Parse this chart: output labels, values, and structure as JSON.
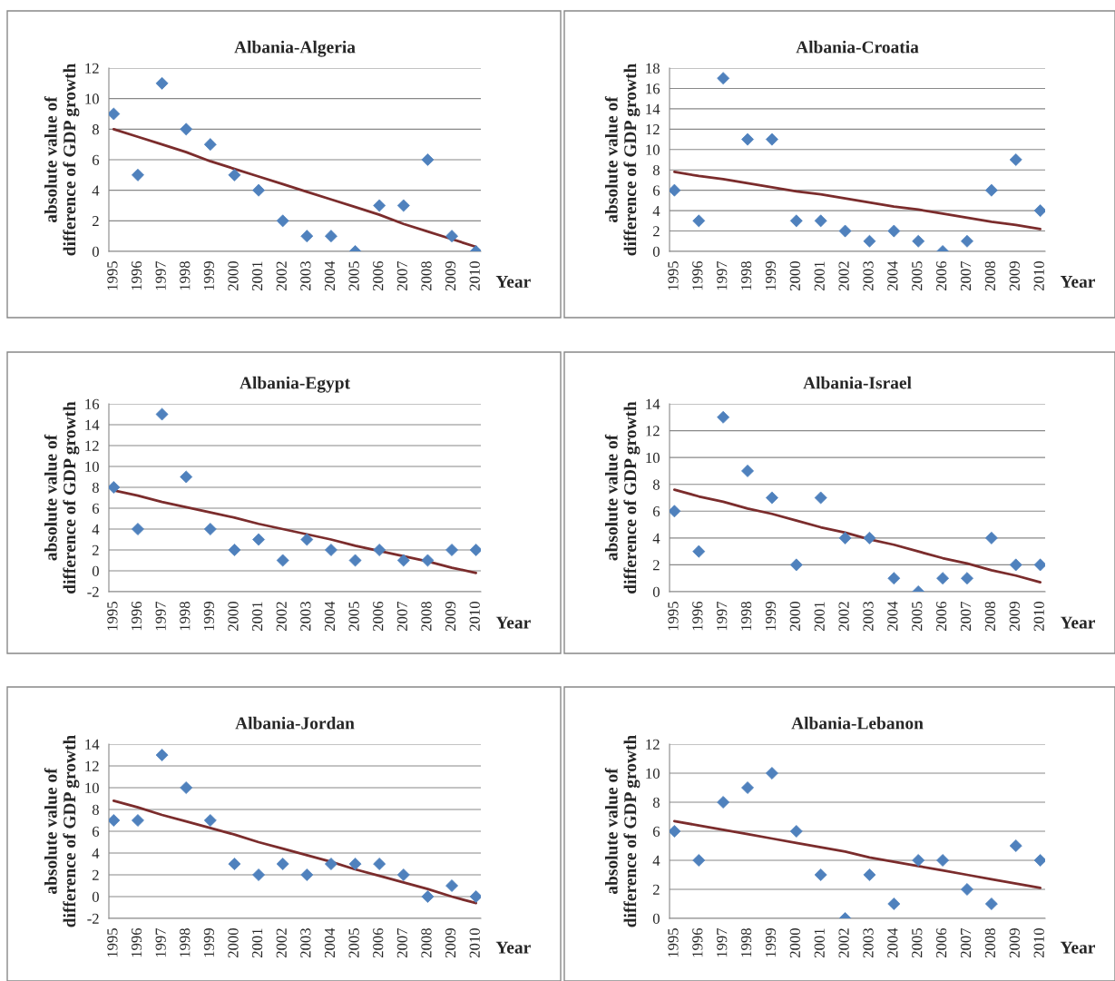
{
  "chart_data": [
    {
      "type": "scatter",
      "title": "Albania-Algeria",
      "xlabel": "Year",
      "ylabel": "absolute value of\ndifference of GDP growth",
      "categories": [
        "1995",
        "1996",
        "1997",
        "1998",
        "1999",
        "2000",
        "2001",
        "2002",
        "2003",
        "2004",
        "2005",
        "2006",
        "2007",
        "2008",
        "2009",
        "2010"
      ],
      "ylim": [
        0,
        12
      ],
      "yticks": [
        0,
        2,
        4,
        6,
        8,
        10,
        12
      ],
      "grid": "y",
      "legend": false,
      "series": [
        {
          "color": "#4f81bd",
          "marker": "diamond",
          "values": [
            9,
            5,
            11,
            8,
            7,
            5,
            4,
            2,
            1,
            1,
            0,
            3,
            3,
            6,
            1,
            0
          ]
        },
        {
          "type": "line",
          "color": "#7b2c2c",
          "marker": "none",
          "values": [
            8,
            7.5,
            7.0,
            6.5,
            5.9,
            5.4,
            4.9,
            4.4,
            3.9,
            3.4,
            2.9,
            2.4,
            1.8,
            1.3,
            0.8,
            0.3
          ]
        }
      ]
    },
    {
      "type": "scatter",
      "title": "Albania-Croatia",
      "xlabel": "Year",
      "ylabel": "absolute value of\ndifference of GDP growth",
      "categories": [
        "1995",
        "1996",
        "1997",
        "1998",
        "1999",
        "2000",
        "2001",
        "2002",
        "2003",
        "2004",
        "2005",
        "2006",
        "2007",
        "2008",
        "2009",
        "2010"
      ],
      "ylim": [
        0,
        18
      ],
      "yticks": [
        0,
        2,
        4,
        6,
        8,
        10,
        12,
        14,
        16,
        18
      ],
      "grid": "y",
      "legend": false,
      "series": [
        {
          "color": "#4f81bd",
          "marker": "diamond",
          "values": [
            6,
            3,
            17,
            11,
            11,
            3,
            3,
            2,
            1,
            2,
            1,
            0,
            1,
            6,
            9,
            4
          ]
        },
        {
          "type": "line",
          "color": "#7b2c2c",
          "marker": "none",
          "values": [
            7.8,
            7.4,
            7.1,
            6.7,
            6.3,
            5.9,
            5.6,
            5.2,
            4.8,
            4.4,
            4.1,
            3.7,
            3.3,
            2.9,
            2.6,
            2.2
          ]
        }
      ]
    },
    {
      "type": "scatter",
      "title": "Albania-Egypt",
      "xlabel": "Year",
      "ylabel": "absolute value of\ndifference of GDP growth",
      "categories": [
        "1995",
        "1996",
        "1997",
        "1998",
        "1999",
        "2000",
        "2001",
        "2002",
        "2003",
        "2004",
        "2005",
        "2006",
        "2007",
        "2008",
        "2009",
        "2010"
      ],
      "ylim": [
        -2,
        16
      ],
      "yticks": [
        -2,
        0,
        2,
        4,
        6,
        8,
        10,
        12,
        14,
        16
      ],
      "grid": "y",
      "legend": false,
      "series": [
        {
          "color": "#4f81bd",
          "marker": "diamond",
          "values": [
            8,
            4,
            15,
            9,
            4,
            2,
            3,
            1,
            3,
            2,
            1,
            2,
            1,
            1,
            2,
            2
          ]
        },
        {
          "type": "line",
          "color": "#7b2c2c",
          "marker": "none",
          "values": [
            7.7,
            7.2,
            6.6,
            6.1,
            5.6,
            5.1,
            4.5,
            4.0,
            3.5,
            3.0,
            2.4,
            1.9,
            1.4,
            0.9,
            0.3,
            -0.2
          ]
        }
      ]
    },
    {
      "type": "scatter",
      "title": "Albania-Israel",
      "xlabel": "Year",
      "ylabel": "absolute value of\ndifference of GDP growth",
      "categories": [
        "1995",
        "1996",
        "1997",
        "1998",
        "1999",
        "2000",
        "2001",
        "2002",
        "2003",
        "2004",
        "2005",
        "2006",
        "2007",
        "2008",
        "2009",
        "2010"
      ],
      "ylim": [
        0,
        14
      ],
      "yticks": [
        0,
        2,
        4,
        6,
        8,
        10,
        12,
        14
      ],
      "grid": "y",
      "legend": false,
      "series": [
        {
          "color": "#4f81bd",
          "marker": "diamond",
          "values": [
            6,
            3,
            13,
            9,
            7,
            2,
            7,
            4,
            4,
            1,
            0,
            1,
            1,
            4,
            2,
            2
          ]
        },
        {
          "type": "line",
          "color": "#7b2c2c",
          "marker": "none",
          "values": [
            7.6,
            7.1,
            6.7,
            6.2,
            5.8,
            5.3,
            4.8,
            4.4,
            3.9,
            3.5,
            3.0,
            2.5,
            2.1,
            1.6,
            1.2,
            0.7
          ]
        }
      ]
    },
    {
      "type": "scatter",
      "title": "Albania-Jordan",
      "xlabel": "Year",
      "ylabel": "absolute value of\ndifference of GDP growth",
      "categories": [
        "1995",
        "1996",
        "1997",
        "1998",
        "1999",
        "2000",
        "2001",
        "2002",
        "2003",
        "2004",
        "2005",
        "2006",
        "2007",
        "2008",
        "2009",
        "2010"
      ],
      "ylim": [
        -2,
        14
      ],
      "yticks": [
        -2,
        0,
        2,
        4,
        6,
        8,
        10,
        12,
        14
      ],
      "grid": "y",
      "legend": false,
      "series": [
        {
          "color": "#4f81bd",
          "marker": "diamond",
          "values": [
            7,
            7,
            13,
            10,
            7,
            3,
            2,
            3,
            2,
            3,
            3,
            3,
            2,
            0,
            1,
            0
          ]
        },
        {
          "type": "line",
          "color": "#7b2c2c",
          "marker": "none",
          "values": [
            8.8,
            8.2,
            7.5,
            6.9,
            6.3,
            5.7,
            5.0,
            4.4,
            3.8,
            3.2,
            2.5,
            1.9,
            1.3,
            0.7,
            0.0,
            -0.6
          ]
        }
      ]
    },
    {
      "type": "scatter",
      "title": "Albania-Lebanon",
      "xlabel": "Year",
      "ylabel": "absolute value of\ndifference of GDP growth",
      "categories": [
        "1995",
        "1996",
        "1997",
        "1998",
        "1999",
        "2000",
        "2001",
        "2002",
        "2003",
        "2004",
        "2005",
        "2006",
        "2007",
        "2008",
        "2009",
        "2010"
      ],
      "ylim": [
        0,
        12
      ],
      "yticks": [
        0,
        2,
        4,
        6,
        8,
        10,
        12
      ],
      "grid": "y",
      "legend": false,
      "series": [
        {
          "color": "#4f81bd",
          "marker": "diamond",
          "values": [
            6,
            4,
            8,
            9,
            10,
            6,
            3,
            0,
            3,
            1,
            4,
            4,
            2,
            1,
            5,
            4
          ]
        },
        {
          "type": "line",
          "color": "#7b2c2c",
          "marker": "none",
          "values": [
            6.7,
            6.4,
            6.1,
            5.8,
            5.5,
            5.2,
            4.9,
            4.6,
            4.2,
            3.9,
            3.6,
            3.3,
            3.0,
            2.7,
            2.4,
            2.1
          ]
        }
      ]
    }
  ]
}
